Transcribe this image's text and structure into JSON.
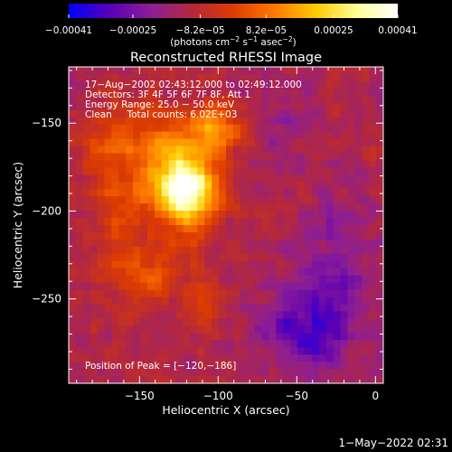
{
  "chart_data": {
    "type": "heatmap",
    "title": "Reconstructed RHESSI Image",
    "xlabel": "Heliocentric X (arcsec)",
    "ylabel": "Heliocentric Y (arcsec)",
    "xlim": [
      -195,
      5
    ],
    "ylim": [
      -298,
      -118
    ],
    "x_ticks": [
      -150,
      -100,
      -50,
      0
    ],
    "x_tick_labels": [
      "−150",
      "−100",
      "−50",
      "0"
    ],
    "y_ticks": [
      -150,
      -200,
      -250
    ],
    "y_tick_labels": [
      "−150",
      "−200",
      "−250"
    ],
    "colorbar": {
      "range": [
        -0.00041,
        0.00041
      ],
      "ticks": [
        -0.00041,
        -0.00025,
        -8.2e-05,
        8.2e-05,
        0.00025,
        0.00041
      ],
      "tick_labels": [
        "−0.00041",
        "−0.00025",
        "−8.2e−05",
        "8.2e−05",
        "0.00025",
        "0.00041"
      ],
      "unit_parts": [
        "(photons cm",
        "−2",
        " s",
        "−1",
        " asec",
        "−2",
        ")"
      ],
      "stops": [
        "#0000ff",
        "#5a00b4",
        "#8c1e96",
        "#b4283c",
        "#dc3c00",
        "#ff7800",
        "#ffc800",
        "#ffff96",
        "#ffffff"
      ]
    },
    "annotations": [
      "17−Aug−2002 02:43:12.000 to 02:49:12.000",
      "Detectors: 3F 4F 5F 6F 7F 8F, Att 1",
      "Energy Range: 25.0 − 50.0 keV",
      "Clean     Total counts: 6.02E+03"
    ],
    "peak_label": "Position of Peak = [−120,−186]",
    "peak": {
      "x": -120,
      "y": -186
    },
    "grid": false,
    "image_model": {
      "background": -0.00012,
      "sources": [
        {
          "x": -118,
          "y": -190,
          "sx": 12,
          "sy": 14,
          "amp": 0.00041
        },
        {
          "x": -135,
          "y": -175,
          "sx": 18,
          "sy": 20,
          "amp": 0.00026
        },
        {
          "x": -100,
          "y": -155,
          "sx": 12,
          "sy": 10,
          "amp": 0.00024
        },
        {
          "x": -170,
          "y": -160,
          "sx": 12,
          "sy": 15,
          "amp": 0.00013
        },
        {
          "x": -145,
          "y": -235,
          "sx": 15,
          "sy": 12,
          "amp": 0.00015
        },
        {
          "x": -165,
          "y": -210,
          "sx": 10,
          "sy": 18,
          "amp": 0.00012
        },
        {
          "x": -110,
          "y": -250,
          "sx": 10,
          "sy": 10,
          "amp": 0.0001
        },
        {
          "x": -40,
          "y": -265,
          "sx": 22,
          "sy": 18,
          "amp": -0.0002
        },
        {
          "x": -25,
          "y": -220,
          "sx": 14,
          "sy": 20,
          "amp": -0.0001
        },
        {
          "x": -60,
          "y": -150,
          "sx": 18,
          "sy": 16,
          "amp": -6e-05
        }
      ]
    }
  },
  "footer": {
    "timestamp": "1−May−2022 02:31"
  }
}
